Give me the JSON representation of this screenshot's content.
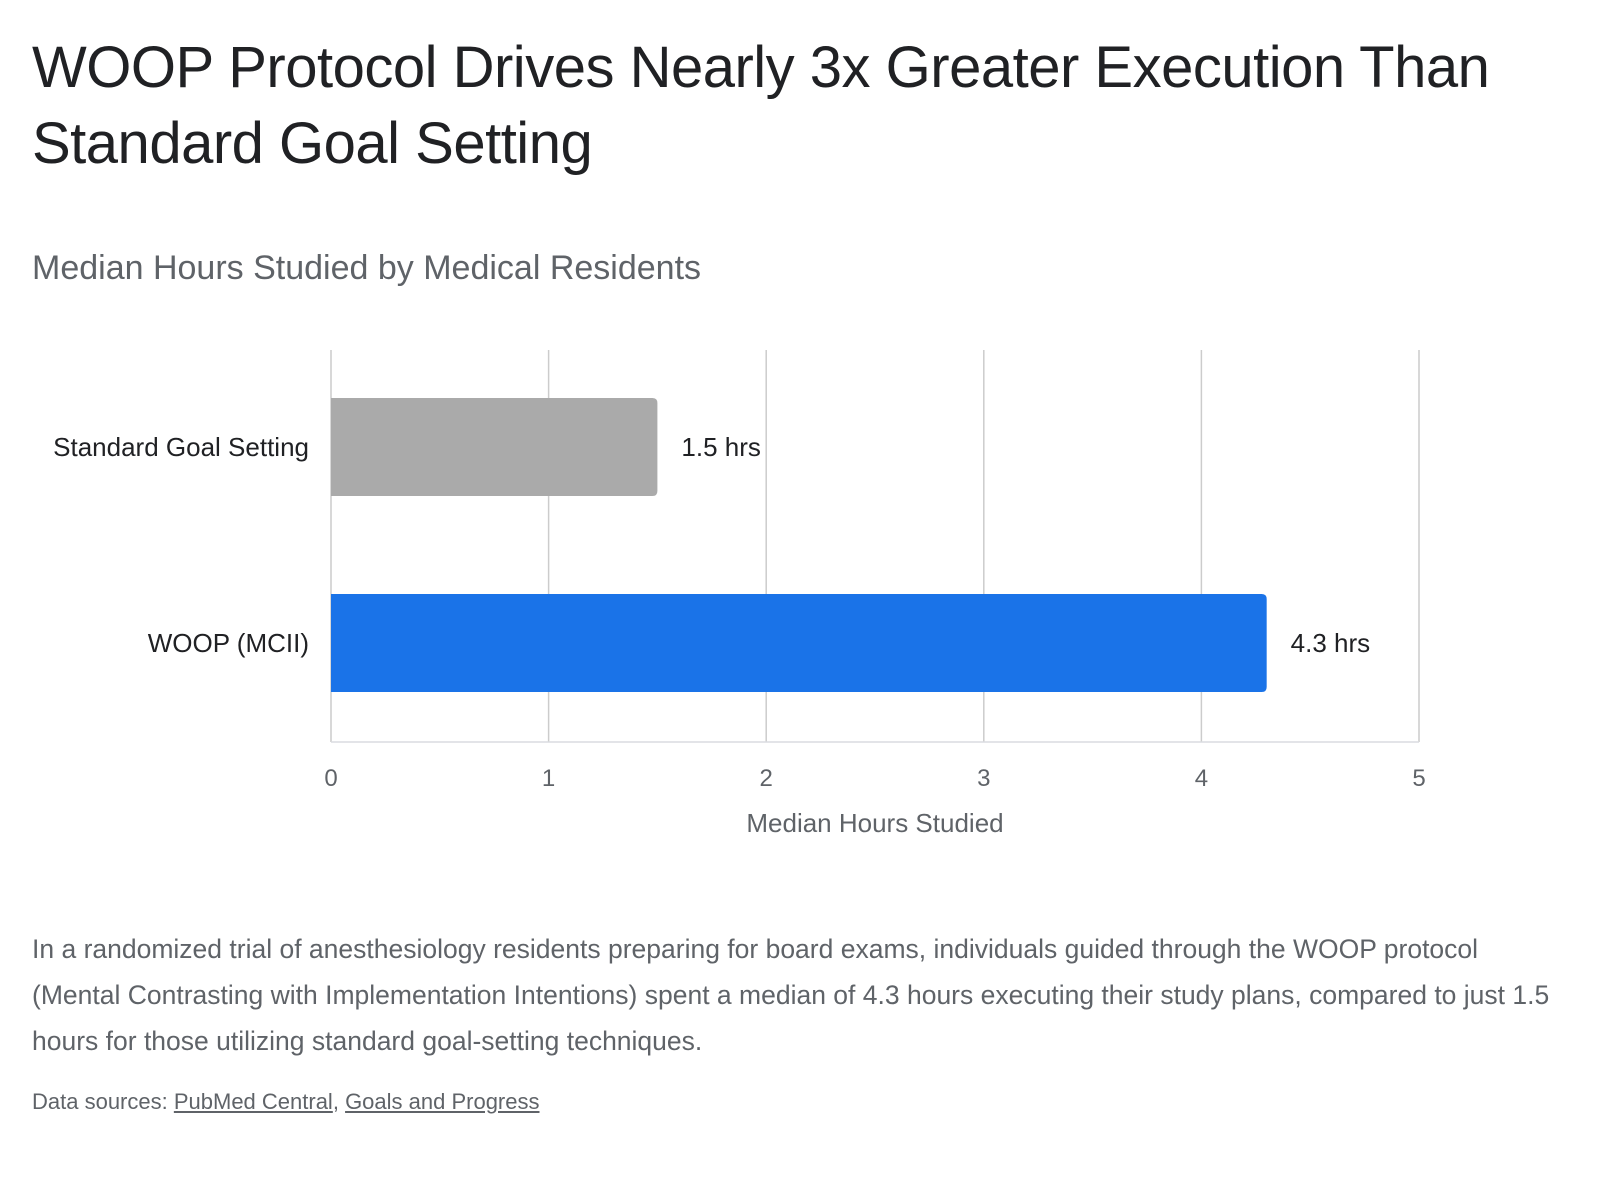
{
  "title": "WOOP Protocol Drives Nearly 3x Greater Execution Than Standard Goal Setting",
  "subtitle": "Median Hours Studied by Medical Residents",
  "description": "In a randomized trial of anesthesiology residents preparing for board exams, individuals guided through the WOOP protocol (Mental Contrasting with Implementation Intentions) spent a median of 4.3 hours executing their study plans, compared to just 1.5 hours for those utilizing standard goal-setting techniques.",
  "sources": {
    "prefix": "Data sources: ",
    "links": [
      "PubMed Central",
      "Goals and Progress"
    ],
    "separator": ", "
  },
  "colors": {
    "standard": "#aaaaaa",
    "woop": "#1a73e8",
    "gridline": "#cccccc",
    "axis_text": "#5f6368",
    "label_text": "#202124"
  },
  "chart_data": {
    "type": "bar",
    "orientation": "horizontal",
    "categories": [
      "Standard Goal Setting",
      "WOOP (MCII)"
    ],
    "values": [
      1.5,
      4.3
    ],
    "data_labels": [
      "1.5 hrs",
      "4.3 hrs"
    ],
    "bar_colors": [
      "#aaaaaa",
      "#1a73e8"
    ],
    "xlabel": "Median Hours Studied",
    "ylabel": "",
    "xlim": [
      0,
      5
    ],
    "xticks": [
      0,
      1,
      2,
      3,
      4,
      5
    ],
    "xtick_labels": [
      "0",
      "1",
      "2",
      "3",
      "4",
      "5"
    ],
    "grid": true,
    "legend": "none"
  }
}
